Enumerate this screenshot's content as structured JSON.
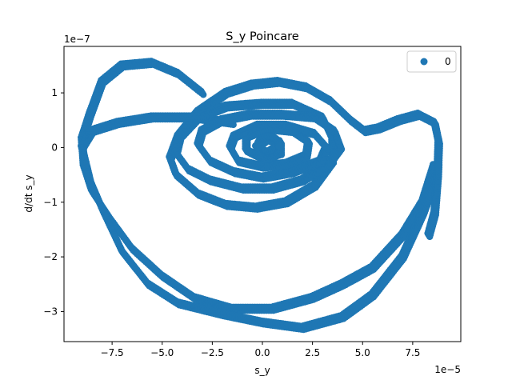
{
  "chart_data": {
    "type": "scatter",
    "title": "S_y Poincare",
    "xlabel": "s_y",
    "ylabel": "d/dt s_y",
    "x_scale_label": "1e−5",
    "y_scale_label": "1e−7",
    "xlim": [
      -9.9,
      9.9
    ],
    "ylim": [
      -3.55,
      1.85
    ],
    "x_ticks": [
      -7.5,
      -5.0,
      -2.5,
      0.0,
      2.5,
      5.0,
      7.5
    ],
    "x_tick_labels": [
      "−7.5",
      "−5.0",
      "−2.5",
      "0.0",
      "2.5",
      "5.0",
      "7.5"
    ],
    "y_ticks": [
      -3,
      -2,
      -1,
      0,
      1
    ],
    "y_tick_labels": [
      "−3",
      "−2",
      "−1",
      "0",
      "1"
    ],
    "grid": false,
    "legend": {
      "position": "top-right",
      "entries": [
        "0"
      ]
    },
    "series": [
      {
        "name": "0",
        "color": "#1f77b4",
        "x_unit_exponent": -5,
        "y_unit_exponent": -7,
        "trajectory_points": [
          [
            8.3,
            -1.6
          ],
          [
            8.6,
            -1.2
          ],
          [
            8.75,
            -0.5
          ],
          [
            8.8,
            0.1
          ],
          [
            8.6,
            0.45
          ],
          [
            7.8,
            0.6
          ],
          [
            6.8,
            0.5
          ],
          [
            5.8,
            0.35
          ],
          [
            5.1,
            0.3
          ],
          [
            4.4,
            0.5
          ],
          [
            3.4,
            0.85
          ],
          [
            2.2,
            1.1
          ],
          [
            0.8,
            1.2
          ],
          [
            -0.5,
            1.15
          ],
          [
            -1.8,
            1.0
          ],
          [
            -3.2,
            0.65
          ],
          [
            -4.2,
            0.2
          ],
          [
            -4.6,
            -0.2
          ],
          [
            -4.3,
            -0.5
          ],
          [
            -3.2,
            -0.85
          ],
          [
            -1.8,
            -1.05
          ],
          [
            -0.3,
            -1.1
          ],
          [
            1.2,
            -1.0
          ],
          [
            2.6,
            -0.7
          ],
          [
            3.5,
            -0.25
          ],
          [
            3.5,
            0.15
          ],
          [
            3.0,
            0.55
          ],
          [
            1.5,
            0.8
          ],
          [
            0.0,
            0.8
          ],
          [
            -1.8,
            0.75
          ],
          [
            -3.2,
            0.55
          ],
          [
            -4.1,
            0.2
          ],
          [
            -4.3,
            -0.1
          ],
          [
            -3.7,
            -0.4
          ],
          [
            -2.6,
            -0.6
          ],
          [
            -1.0,
            -0.75
          ],
          [
            0.5,
            -0.75
          ],
          [
            2.0,
            -0.6
          ],
          [
            3.3,
            -0.3
          ],
          [
            3.9,
            0.0
          ],
          [
            3.6,
            0.3
          ],
          [
            2.6,
            0.55
          ],
          [
            1.0,
            0.6
          ],
          [
            -0.6,
            0.6
          ],
          [
            -2.0,
            0.5
          ],
          [
            -3.0,
            0.3
          ],
          [
            -3.2,
            0.05
          ],
          [
            -2.6,
            -0.25
          ],
          [
            -1.4,
            -0.45
          ],
          [
            0.0,
            -0.55
          ],
          [
            1.5,
            -0.45
          ],
          [
            2.9,
            -0.25
          ],
          [
            3.2,
            0.0
          ],
          [
            2.6,
            0.25
          ],
          [
            1.2,
            0.4
          ],
          [
            -0.2,
            0.4
          ],
          [
            -1.4,
            0.2
          ],
          [
            -1.6,
            0.0
          ],
          [
            -1.2,
            -0.25
          ],
          [
            0.0,
            -0.35
          ],
          [
            1.2,
            -0.3
          ],
          [
            2.2,
            -0.15
          ],
          [
            2.3,
            0.1
          ],
          [
            1.5,
            0.3
          ],
          [
            0.2,
            0.35
          ],
          [
            -0.8,
            0.2
          ],
          [
            -0.8,
            -0.05
          ],
          [
            0.0,
            -0.2
          ],
          [
            0.9,
            -0.1
          ],
          [
            0.9,
            0.1
          ],
          [
            0.2,
            0.15
          ],
          [
            -0.3,
            0.0
          ],
          [
            0.3,
            -0.1
          ],
          [
            0.7,
            0.0
          ]
        ],
        "outer_loop_points": [
          [
            -3.0,
            1.0
          ],
          [
            -4.2,
            1.35
          ],
          [
            -5.5,
            1.55
          ],
          [
            -7.0,
            1.5
          ],
          [
            -8.0,
            1.2
          ],
          [
            -8.6,
            0.6
          ],
          [
            -9.0,
            0.15
          ],
          [
            -8.9,
            -0.35
          ],
          [
            -8.5,
            -0.8
          ],
          [
            -7.6,
            -1.3
          ],
          [
            -6.5,
            -1.85
          ],
          [
            -5.0,
            -2.35
          ],
          [
            -3.4,
            -2.75
          ],
          [
            -1.5,
            -2.95
          ],
          [
            0.5,
            -2.95
          ],
          [
            2.5,
            -2.75
          ],
          [
            4.0,
            -2.5
          ],
          [
            5.5,
            -2.2
          ],
          [
            7.0,
            -1.6
          ],
          [
            8.0,
            -1.0
          ],
          [
            8.6,
            -0.3
          ]
        ],
        "inner_outer_loop_points": [
          [
            -1.5,
            0.45
          ],
          [
            -3.5,
            0.55
          ],
          [
            -5.5,
            0.55
          ],
          [
            -7.2,
            0.45
          ],
          [
            -8.5,
            0.3
          ],
          [
            -9.0,
            0.0
          ],
          [
            -8.6,
            -0.6
          ],
          [
            -7.9,
            -1.2
          ],
          [
            -7.0,
            -1.9
          ],
          [
            -5.7,
            -2.5
          ],
          [
            -4.2,
            -2.85
          ],
          [
            -2.0,
            -3.05
          ],
          [
            0.0,
            -3.2
          ],
          [
            2.0,
            -3.3
          ],
          [
            4.0,
            -3.1
          ],
          [
            5.5,
            -2.7
          ],
          [
            7.0,
            -2.0
          ],
          [
            8.0,
            -1.2
          ],
          [
            8.7,
            -0.5
          ]
        ]
      }
    ]
  }
}
